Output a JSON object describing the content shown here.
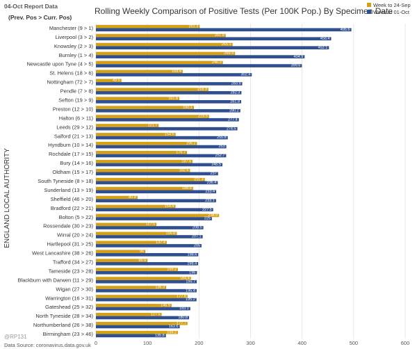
{
  "report_date": "04-Oct Report Data",
  "subheading": "(Prev. Pos > Curr. Pos)",
  "source": "Data Source: coronavirus.data.gov.uk",
  "handle": "@RP131",
  "chart_data": {
    "type": "bar",
    "orientation": "horizontal",
    "title": "Rolling Weekly Comparison of Positive Tests (Per 100K Pop.) By Specimen Date",
    "xlabel": "",
    "ylabel": "ENGLAND LOCAL AUTHORITY",
    "xlim": [
      0,
      600
    ],
    "xticks": [
      0,
      100,
      200,
      300,
      400,
      500,
      600
    ],
    "grid": true,
    "legend_position": "top-right",
    "categories": [
      "Manchester (9 > 1)",
      "Liverpool (3 > 2)",
      "Knowsley (2 > 3)",
      "Burnley (1 > 4)",
      "Newcastle upon Tyne (4 > 5)",
      "St. Helens (18 > 6)",
      "Nottingham (72 > 7)",
      "Pendle (7 > 8)",
      "Sefton (19 > 9)",
      "Preston (12 > 10)",
      "Halton (6 > 11)",
      "Leeds (29 > 12)",
      "Salford (21 > 13)",
      "Hyndburn (10 > 14)",
      "Rochdale (17 > 15)",
      "Bury (14 > 16)",
      "Oldham (15 > 17)",
      "South Tyneside (8 > 18)",
      "Sunderland (13 > 19)",
      "Sheffield (46 > 20)",
      "Bradford (22 > 21)",
      "Bolton (5 > 22)",
      "Rossendale (30 > 23)",
      "Wirral (20 > 24)",
      "Hartlepool (31 > 25)",
      "West Lancashire (38 > 26)",
      "Trafford (34 > 27)",
      "Tameside (23 > 28)",
      "Blackburn with Darwen (11 > 29)",
      "Wigan (27 > 30)",
      "Warrington (16 > 31)",
      "Gateshead (25 > 32)",
      "North Tyneside (28 > 34)",
      "Northumberland (26 > 38)",
      "Birmingham (23 > 46)"
    ],
    "series": [
      {
        "name": "Week to 24-Sep",
        "color": "#d4a017",
        "values": [
          201.3,
          251.8,
          265.1,
          269.9,
          246.3,
          168.4,
          49.5,
          218.3,
          161.8,
          190.1,
          219.5,
          121.7,
          154.6,
          196.2,
          176.7,
          187.5,
          182.6,
          211.3,
          188.6,
          80.8,
          154.4,
          238.9,
          117.5,
          156.8,
          137.4,
          96,
          99.9,
          159.2,
          184.4,
          136.3,
          177.8,
          146.9,
          127.5,
          177.7,
          159.2
        ]
      },
      {
        "name": "Week to 01-Oct",
        "color": "#2f4f8f",
        "values": [
          495.6,
          456.4,
          452.1,
          404.9,
          399.6,
          302.4,
          283.9,
          282.3,
          281.8,
          280.2,
          277.4,
          274.5,
          255.8,
          253,
          252.7,
          245.5,
          237,
          236.4,
          233.4,
          233.1,
          227.5,
          225,
          208.5,
          207.1,
          205,
          198.6,
          198.4,
          196,
          195.7,
          195.4,
          195.2,
          183.1,
          180.8,
          162.6,
          135.8
        ]
      }
    ]
  }
}
